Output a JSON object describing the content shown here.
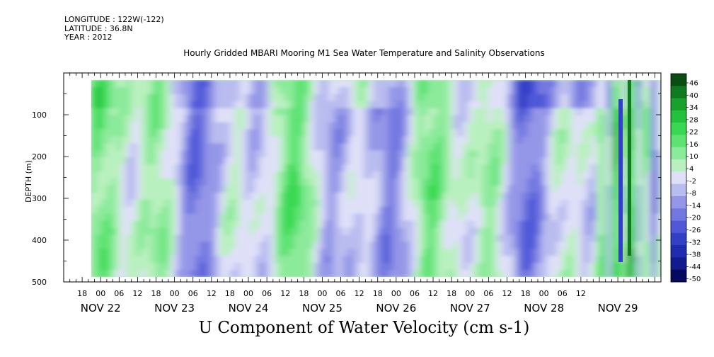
{
  "header": {
    "longitude": "LONGITUDE : 122W(-122)",
    "latitude": "LATITUDE : 36.8N",
    "year": "YEAR : 2012",
    "title": "Hourly Gridded MBARI Mooring M1 Sea Water Temperature and Salinity Observations"
  },
  "chart_data": {
    "type": "heatmap",
    "title": "U Component of Water Velocity (cm s-1)",
    "ylabel": "DEPTH (m)",
    "xlabel": "",
    "y_reversed": true,
    "ylim": [
      500,
      0
    ],
    "y_ticks": [
      100,
      200,
      300,
      400,
      500
    ],
    "x_range_hours": [
      "NOV 21 12",
      "NOV 29 14"
    ],
    "hour_tick_labels": [
      "18",
      "00",
      "06",
      "12",
      "18",
      "00",
      "06",
      "12",
      "18",
      "00",
      "06",
      "12",
      "18",
      "00",
      "06",
      "12",
      "18",
      "00",
      "06",
      "12",
      "18",
      "00",
      "06",
      "12",
      "18",
      "00",
      "06",
      "12"
    ],
    "day_labels": [
      "NOV 22",
      "NOV 23",
      "NOV 24",
      "NOV 25",
      "NOV 26",
      "NOV 27",
      "NOV 28",
      "NOV 29"
    ],
    "colorbar": {
      "labels": [
        "46",
        "40",
        "34",
        "28",
        "22",
        "16",
        "10",
        "4",
        "-2",
        "-8",
        "-14",
        "-20",
        "-26",
        "-32",
        "-38",
        "-44",
        "-50"
      ],
      "colors": [
        "#0a4d12",
        "#107a20",
        "#19a12e",
        "#22c23c",
        "#38d851",
        "#5ee373",
        "#8cea9b",
        "#b9f0bf",
        "#dfe0f8",
        "#b9bcef",
        "#9496e8",
        "#7378e0",
        "#5058d8",
        "#3240c8",
        "#1e2cae",
        "#101c8c",
        "#060a5e"
      ]
    },
    "grid": false
  }
}
